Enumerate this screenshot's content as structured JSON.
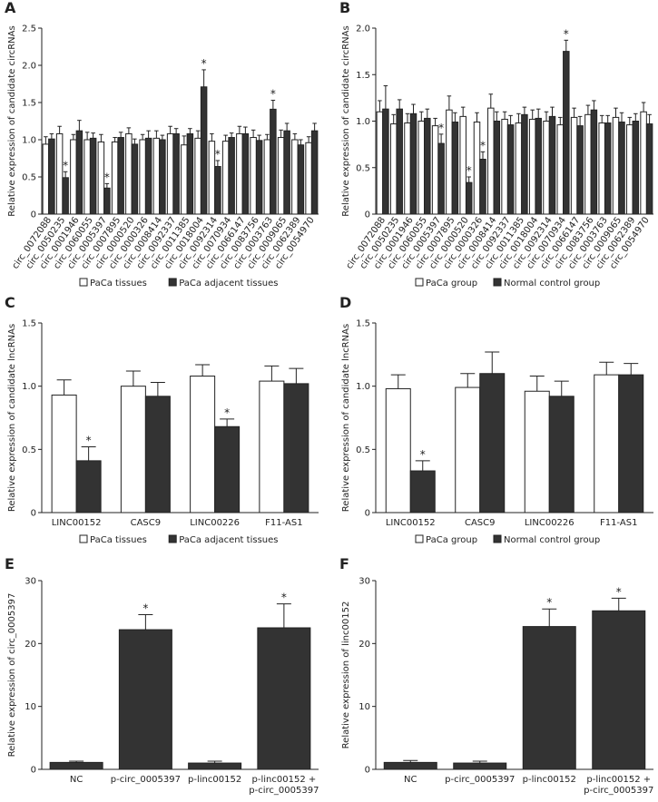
{
  "figure": {
    "colors": {
      "control": "#ffffff",
      "treated": "#333333",
      "stroke": "#222222"
    }
  },
  "chart_data": [
    {
      "panel": "A",
      "type": "bar",
      "ylabel": "Relative expression of candidate circRNAs",
      "ylim": [
        0,
        2.5
      ],
      "yticks": [
        "0",
        "0.5",
        "1.0",
        "1.5",
        "2.0",
        "2.5"
      ],
      "categories": [
        "circ_0072088",
        "circ_0050235",
        "circ_0001946",
        "circ_0060055",
        "circ_0005397",
        "circ_0007895",
        "circ_0000520",
        "circ_0000326",
        "circ_0008414",
        "circ_0092337",
        "circ_0011385",
        "circ_0018004",
        "circ_0092314",
        "circ_0070934",
        "circ_0066147",
        "circ_0083756",
        "circ_0003763",
        "circ_0009065",
        "circ_0062389",
        "circ_0054970"
      ],
      "rotate_labels": true,
      "legend": [
        "PaCa tissues",
        "PaCa adjacent tissues"
      ],
      "series": [
        {
          "name": "PaCa tissues",
          "values": [
            0.94,
            1.08,
            1.0,
            1.0,
            0.97,
            0.97,
            1.08,
            1.0,
            1.02,
            1.08,
            0.93,
            1.02,
            0.98,
            0.98,
            1.08,
            1.03,
            1.0,
            1.03,
            1.0,
            0.96
          ],
          "errors": [
            0.1,
            0.1,
            0.07,
            0.1,
            0.1,
            0.06,
            0.08,
            0.07,
            0.1,
            0.1,
            0.12,
            0.1,
            0.1,
            0.08,
            0.1,
            0.1,
            0.07,
            0.1,
            0.08,
            0.08
          ]
        },
        {
          "name": "PaCa adjacent tissues",
          "values": [
            1.01,
            0.49,
            1.12,
            1.02,
            0.35,
            1.03,
            0.94,
            1.02,
            1.0,
            1.08,
            1.08,
            1.71,
            0.64,
            1.03,
            1.08,
            0.99,
            1.41,
            1.12,
            0.93,
            1.12
          ],
          "errors": [
            0.07,
            0.08,
            0.14,
            0.07,
            0.06,
            0.07,
            0.07,
            0.1,
            0.06,
            0.07,
            0.07,
            0.23,
            0.08,
            0.06,
            0.09,
            0.07,
            0.12,
            0.1,
            0.07,
            0.1
          ]
        }
      ],
      "significant": [
        1,
        4,
        11,
        12,
        16
      ]
    },
    {
      "panel": "B",
      "type": "bar",
      "ylabel": "Relative expression of candidate circRNAs",
      "ylim": [
        0,
        2.0
      ],
      "yticks": [
        "0",
        "0.5",
        "1.0",
        "1.5",
        "2.0"
      ],
      "categories": [
        "circ_0072088",
        "circ_0050235",
        "circ_0001946",
        "circ_0060055",
        "circ_0005397",
        "circ_0007895",
        "circ_0000520",
        "circ_0000326",
        "circ_0008414",
        "circ_0092337",
        "circ_0011385",
        "circ_0018004",
        "circ_0092314",
        "circ_0070934",
        "circ_0066147",
        "circ_0083756",
        "circ_0003763",
        "circ_0009065",
        "circ_0062389",
        "circ_0054970"
      ],
      "rotate_labels": true,
      "legend": [
        "PaCa group",
        "Normal control group"
      ],
      "series": [
        {
          "name": "PaCa group",
          "values": [
            1.1,
            0.97,
            0.98,
            1.0,
            0.95,
            1.12,
            1.05,
            0.99,
            1.14,
            1.02,
            0.98,
            1.02,
            1.0,
            0.96,
            1.04,
            1.07,
            0.98,
            1.04,
            0.96,
            1.1
          ],
          "errors": [
            0.12,
            0.1,
            0.1,
            0.1,
            0.08,
            0.15,
            0.1,
            0.1,
            0.15,
            0.08,
            0.1,
            0.1,
            0.1,
            0.08,
            0.1,
            0.1,
            0.08,
            0.1,
            0.08,
            0.1
          ]
        },
        {
          "name": "Normal control group",
          "values": [
            1.13,
            1.13,
            1.08,
            1.03,
            0.76,
            0.99,
            0.34,
            0.59,
            1.0,
            0.96,
            1.07,
            1.03,
            1.05,
            1.75,
            0.95,
            1.12,
            0.98,
            0.99,
            1.0,
            0.97
          ],
          "errors": [
            0.25,
            0.1,
            0.1,
            0.1,
            0.1,
            0.1,
            0.06,
            0.08,
            0.1,
            0.1,
            0.08,
            0.1,
            0.1,
            0.12,
            0.1,
            0.1,
            0.08,
            0.1,
            0.08,
            0.1
          ]
        }
      ],
      "significant": [
        4,
        6,
        7,
        13
      ]
    },
    {
      "panel": "C",
      "type": "bar",
      "ylabel": "Relative expression of candidate lncRNAs",
      "ylim": [
        0,
        1.5
      ],
      "yticks": [
        "0",
        "0.5",
        "1.0",
        "1.5"
      ],
      "categories": [
        "LINC00152",
        "CASC9",
        "LINC00226",
        "F11-AS1"
      ],
      "rotate_labels": false,
      "legend": [
        "PaCa tissues",
        "PaCa adjacent tissues"
      ],
      "series": [
        {
          "name": "PaCa tissues",
          "values": [
            0.93,
            1.0,
            1.08,
            1.04
          ],
          "errors": [
            0.12,
            0.12,
            0.09,
            0.12
          ]
        },
        {
          "name": "PaCa adjacent tissues",
          "values": [
            0.41,
            0.92,
            0.68,
            1.02
          ],
          "errors": [
            0.11,
            0.11,
            0.06,
            0.12
          ]
        }
      ],
      "significant": [
        0,
        2
      ]
    },
    {
      "panel": "D",
      "type": "bar",
      "ylabel": "Relative expression of candidate lncRNAs",
      "ylim": [
        0,
        1.5
      ],
      "yticks": [
        "0",
        "0.5",
        "1.0",
        "1.5"
      ],
      "categories": [
        "LINC00152",
        "CASC9",
        "LINC00226",
        "F11-AS1"
      ],
      "rotate_labels": false,
      "legend": [
        "PaCa group",
        "Normal control group"
      ],
      "series": [
        {
          "name": "PaCa group",
          "values": [
            0.98,
            0.99,
            0.96,
            1.09
          ],
          "errors": [
            0.11,
            0.11,
            0.12,
            0.1
          ]
        },
        {
          "name": "Normal control group",
          "values": [
            0.33,
            1.1,
            0.92,
            1.09
          ],
          "errors": [
            0.08,
            0.17,
            0.12,
            0.09
          ]
        }
      ],
      "significant": [
        0
      ]
    },
    {
      "panel": "E",
      "type": "bar",
      "ylabel": "Relative expression of circ_0005397",
      "ylim": [
        0,
        30
      ],
      "yticks": [
        "0",
        "10",
        "20",
        "30"
      ],
      "categories": [
        "NC",
        "p-circ_0005397",
        "p-linc00152",
        "p-linc00152 + p-circ_0005397"
      ],
      "rotate_labels": false,
      "legend": [],
      "series": [
        {
          "name": "expression",
          "values": [
            1.1,
            22.2,
            1.0,
            22.5
          ],
          "errors": [
            0.2,
            2.4,
            0.3,
            3.8
          ]
        }
      ],
      "significant": [
        1,
        3
      ]
    },
    {
      "panel": "F",
      "type": "bar",
      "ylabel": "Relative expression of linc00152",
      "ylim": [
        0,
        30
      ],
      "yticks": [
        "0",
        "10",
        "20",
        "30"
      ],
      "categories": [
        "NC",
        "p-circ_0005397",
        "p-linc00152",
        "p-linc00152 + p-circ_0005397"
      ],
      "rotate_labels": false,
      "legend": [],
      "series": [
        {
          "name": "expression",
          "values": [
            1.1,
            1.0,
            22.7,
            25.2
          ],
          "errors": [
            0.3,
            0.3,
            2.8,
            2.0
          ]
        }
      ],
      "significant": [
        2,
        3
      ]
    }
  ]
}
